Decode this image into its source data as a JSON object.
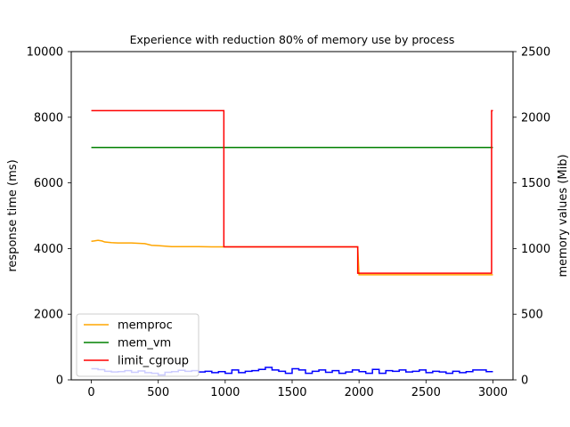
{
  "chart_data": {
    "type": "line",
    "title": "Experience with reduction 80% of memory use by process",
    "xlabel": "",
    "ylabel_left": "response time (ms)",
    "ylabel_right": "memory values (Mib)",
    "xlim": [
      -150,
      3150
    ],
    "ylim_left": [
      0,
      10000
    ],
    "ylim_right": [
      0,
      2500
    ],
    "xticks": [
      0,
      500,
      1000,
      1500,
      2000,
      2500,
      3000
    ],
    "yticks_left": [
      0,
      2000,
      4000,
      6000,
      8000,
      10000
    ],
    "yticks_right": [
      0,
      500,
      1000,
      1500,
      2000,
      2500
    ],
    "grid": false,
    "legend_position": "lower left",
    "series": [
      {
        "name": "memproc",
        "color": "#ffa500",
        "axis": "left",
        "step": false,
        "x": [
          0,
          20,
          50,
          80,
          100,
          150,
          200,
          300,
          400,
          450,
          500,
          600,
          700,
          800,
          900,
          1000,
          1990,
          2000,
          2990,
          3000
        ],
        "y": [
          4220,
          4230,
          4250,
          4230,
          4200,
          4180,
          4170,
          4170,
          4150,
          4100,
          4090,
          4060,
          4060,
          4060,
          4050,
          4050,
          4050,
          3200,
          3200,
          3200
        ]
      },
      {
        "name": "mem_vm",
        "color": "#008000",
        "axis": "left",
        "step": false,
        "x": [
          0,
          3000
        ],
        "y": [
          7080,
          7080
        ]
      },
      {
        "name": "limit_cgroup",
        "color": "#ff0000",
        "axis": "left",
        "step": false,
        "x": [
          0,
          990,
          990,
          1990,
          1990,
          2990,
          2990,
          3000
        ],
        "y": [
          8200,
          8200,
          4050,
          4050,
          3250,
          3250,
          8200,
          8200
        ]
      },
      {
        "name": "",
        "color": "#0000ff",
        "axis": "left",
        "step": true,
        "x": [
          0,
          50,
          100,
          150,
          200,
          250,
          300,
          350,
          400,
          450,
          500,
          550,
          600,
          650,
          700,
          750,
          800,
          850,
          900,
          950,
          1000,
          1050,
          1100,
          1150,
          1200,
          1250,
          1300,
          1350,
          1400,
          1450,
          1500,
          1550,
          1600,
          1650,
          1700,
          1750,
          1800,
          1850,
          1900,
          1950,
          2000,
          2050,
          2100,
          2150,
          2200,
          2250,
          2300,
          2350,
          2400,
          2450,
          2500,
          2550,
          2600,
          2650,
          2700,
          2750,
          2800,
          2850,
          2900,
          2950,
          3000
        ],
        "y": [
          340,
          310,
          260,
          240,
          250,
          280,
          230,
          270,
          220,
          200,
          150,
          230,
          250,
          290,
          260,
          280,
          240,
          260,
          220,
          250,
          200,
          300,
          220,
          260,
          280,
          320,
          380,
          300,
          260,
          200,
          340,
          300,
          200,
          260,
          300,
          230,
          280,
          200,
          240,
          300,
          250,
          200,
          320,
          200,
          280,
          260,
          300,
          240,
          260,
          300,
          220,
          260,
          240,
          200,
          260,
          220,
          250,
          300,
          300,
          250,
          250
        ]
      }
    ],
    "legend_entries": [
      "memproc",
      "mem_vm",
      "limit_cgroup"
    ]
  }
}
